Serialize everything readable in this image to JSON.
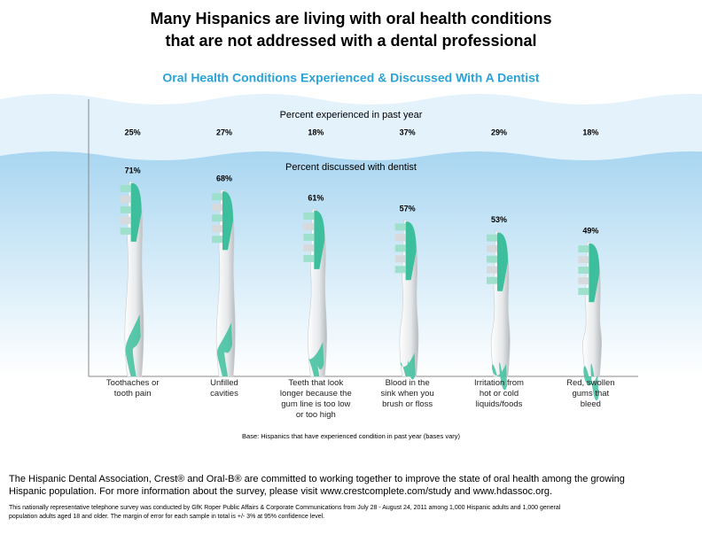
{
  "chart_data": {
    "type": "bar",
    "title": [
      "Many Hispanics are living with oral health conditions",
      "that are not addressed with a dental professional"
    ],
    "subtitle": "Oral Health Conditions Experienced & Discussed With A Dentist",
    "categories": [
      "Toothaches or\ntooth pain",
      "Unfilled\ncavities",
      "Teeth that look\nlonger because the\ngum line is too low\nor too high",
      "Blood in the\nsink when you\nbrush or floss",
      "Irritation from\nhot or cold\nliquids/foods",
      "Red, swollen\ngums that\nbleed"
    ],
    "series": [
      {
        "name": "Percent experienced in past year",
        "values": [
          25,
          27,
          18,
          37,
          29,
          18
        ],
        "value_labels": [
          "25%",
          "27%",
          "18%",
          "37%",
          "29%",
          "18%"
        ]
      },
      {
        "name": "Percent discussed with dentist",
        "color": "#3dbf9e",
        "values": [
          71,
          68,
          61,
          57,
          53,
          49
        ],
        "value_labels": [
          "71%",
          "68%",
          "61%",
          "57%",
          "53%",
          "49%"
        ]
      }
    ],
    "ylim": [
      0,
      100
    ],
    "base_note": "Base: Hispanics that have experienced condition in past year (bases vary)",
    "footer": [
      "The Hispanic Dental Association, Crest® and Oral-B® are committed to working together to improve the state of oral health among the growing",
      "Hispanic population. For more information about the survey, please visit www.crestcomplete.com/study and www.hdassoc.org."
    ],
    "fineprint": [
      "This nationally representative telephone survey was conducted by GfK Roper Public Affairs & Corporate Communications from July 28 - August 24, 2011 among 1,000 Hispanic adults and 1,000 general",
      "population adults aged 18 and older. The margin of error for each sample in total is +/- 3% at 95% confidence level."
    ]
  }
}
